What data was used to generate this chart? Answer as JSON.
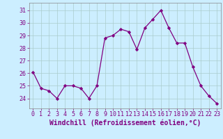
{
  "x": [
    0,
    1,
    2,
    3,
    4,
    5,
    6,
    7,
    8,
    9,
    10,
    11,
    12,
    13,
    14,
    15,
    16,
    17,
    18,
    19,
    20,
    21,
    22,
    23
  ],
  "y": [
    26.1,
    24.8,
    24.6,
    24.0,
    25.0,
    25.0,
    24.8,
    24.0,
    25.0,
    28.8,
    29.0,
    29.5,
    29.3,
    27.9,
    29.6,
    30.3,
    31.0,
    29.6,
    28.4,
    28.4,
    26.5,
    25.0,
    24.2,
    23.6
  ],
  "line_color": "#800080",
  "marker": "D",
  "markersize": 2.2,
  "linewidth": 0.9,
  "bg_color": "#cceeff",
  "grid_color": "#aacccc",
  "xlabel": "Windchill (Refroidissement éolien,°C)",
  "xlabel_fontsize": 7,
  "tick_fontsize": 6,
  "yticks": [
    24,
    25,
    26,
    27,
    28,
    29,
    30,
    31
  ],
  "xticks": [
    0,
    1,
    2,
    3,
    4,
    5,
    6,
    7,
    8,
    9,
    10,
    11,
    12,
    13,
    14,
    15,
    16,
    17,
    18,
    19,
    20,
    21,
    22,
    23
  ],
  "ylim": [
    23.2,
    31.6
  ],
  "xlim": [
    -0.5,
    23.5
  ]
}
